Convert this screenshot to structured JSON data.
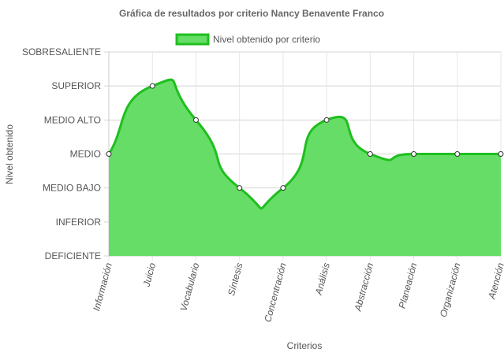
{
  "chart_data": {
    "type": "line",
    "title": "Gráfica de resultados por criterio Nancy Benavente Franco",
    "xlabel": "Criterios",
    "ylabel": "Nivel obtenido",
    "y_levels": [
      "DEFICIENTE",
      "INFERIOR",
      "MEDIO BAJO",
      "MEDIO",
      "MEDIO ALTO",
      "SUPERIOR",
      "SOBRESALIENTE"
    ],
    "categories": [
      "Información",
      "Juicio",
      "Vocabulario",
      "Síntesis",
      "Concentración",
      "Análisis",
      "Abstracción",
      "Planeación",
      "Organización",
      "Atención"
    ],
    "series": [
      {
        "name": "Nivel obtenido por criterio",
        "values": [
          "MEDIO",
          "SUPERIOR",
          "MEDIO ALTO",
          "MEDIO BAJO",
          "MEDIO BAJO",
          "MEDIO ALTO",
          "MEDIO",
          "MEDIO",
          "MEDIO",
          "MEDIO"
        ],
        "color": "#1fbf1f",
        "fill": "#66dd66"
      }
    ],
    "legend": "top",
    "grid": true,
    "smooth": true
  }
}
